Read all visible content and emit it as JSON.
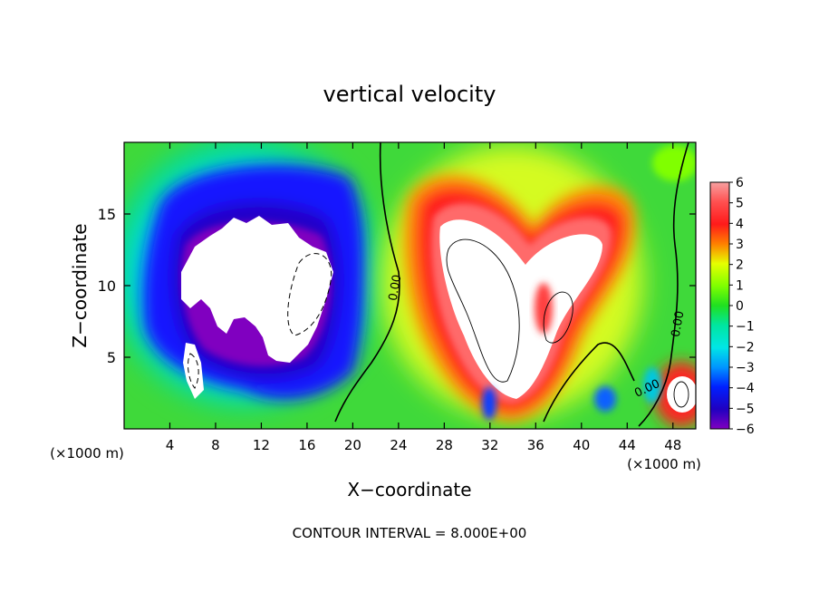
{
  "chart_data": {
    "type": "heatmap",
    "title": "vertical velocity",
    "xlabel": "X−coordinate",
    "ylabel": "Z−coordinate",
    "x_unit_left": "(×1000 m)",
    "x_unit_right": "(×1000 m)",
    "xlim": [
      0,
      50
    ],
    "ylim": [
      0,
      20
    ],
    "x_ticks": [
      4,
      8,
      12,
      16,
      20,
      24,
      28,
      32,
      36,
      40,
      44,
      48
    ],
    "y_ticks": [
      5,
      10,
      15
    ],
    "colorbar": {
      "range": [
        -6,
        6
      ],
      "ticks": [
        "6",
        "5",
        "4",
        "3",
        "2",
        "1",
        "0",
        "−1",
        "−2",
        "−3",
        "−4",
        "−5",
        "−6"
      ]
    },
    "contour_labels": [
      "0.00",
      "0.00",
      "0.00"
    ],
    "footer": "CONTOUR INTERVAL = 8.000E+00",
    "features": [
      {
        "kind": "downdraft",
        "x": [
          3,
          20
        ],
        "z": [
          2,
          17
        ],
        "min_value": -6
      },
      {
        "kind": "updraft",
        "x": [
          25,
          44
        ],
        "z": [
          1,
          17
        ],
        "max_value": 6
      },
      {
        "kind": "updraft",
        "x": [
          47,
          50
        ],
        "z": [
          1,
          4
        ],
        "max_value": 6
      }
    ]
  }
}
